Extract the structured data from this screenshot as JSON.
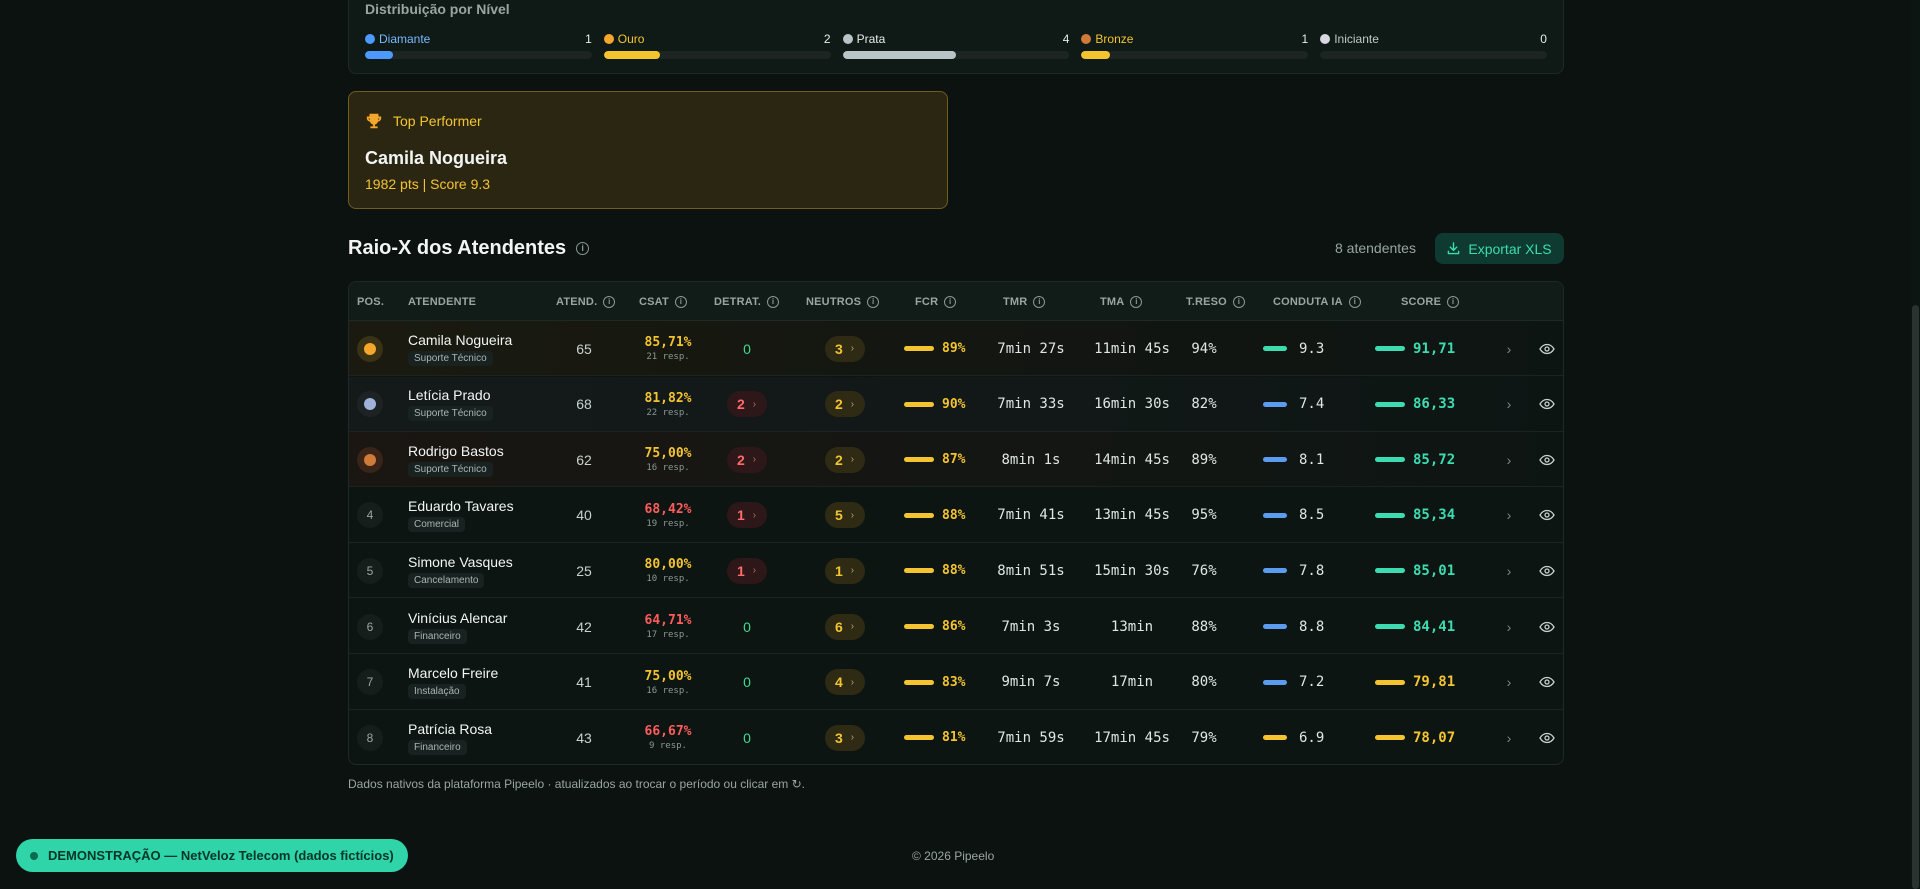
{
  "distribution": {
    "title": "Distribuição por Nível",
    "levels": [
      {
        "name": "Diamante",
        "count": "1",
        "fraction": 0.125,
        "color": "#4c9aff",
        "label_color": "#7ab8ff"
      },
      {
        "name": "Ouro",
        "count": "2",
        "fraction": 0.25,
        "color": "#f4c430",
        "label_color": "#f4c430"
      },
      {
        "name": "Prata",
        "count": "4",
        "fraction": 0.5,
        "color": "#b8c4c8",
        "label_color": "#e6ece9"
      },
      {
        "name": "Bronze",
        "count": "1",
        "fraction": 0.125,
        "color": "#f4c430",
        "label_color": "#f4c430"
      },
      {
        "name": "Iniciante",
        "count": "0",
        "fraction": 0,
        "color": "#888888",
        "label_color": "#c0c8c5"
      }
    ]
  },
  "top_performer": {
    "label": "Top Performer",
    "name": "Camila Nogueira",
    "summary": "1982 pts | Score 9.3"
  },
  "section": {
    "title": "Raio-X dos Atendentes",
    "count": "8 atendentes",
    "export_label": "Exportar XLS"
  },
  "columns": {
    "pos": "POS.",
    "agent": "ATENDENTE",
    "atend": "ATEND.",
    "csat": "CSAT",
    "detrat": "DETRAT.",
    "neutros": "NEUTROS",
    "fcr": "FCR",
    "tmr": "TMR",
    "tma": "TMA",
    "treso": "T.RESO",
    "conduta": "CONDUTA IA",
    "score": "SCORE"
  },
  "rows": [
    {
      "pos": "",
      "medal": "gold",
      "name": "Camila Nogueira",
      "team": "Suporte Técnico",
      "atend": "65",
      "csat": "85,71%",
      "csat_color": "#f4c430",
      "resp": "21 resp.",
      "detrat": "0",
      "neutros": "3",
      "fcr": "89%",
      "tmr": "7min 27s",
      "tma": "11min 45s",
      "treso": "94%",
      "conduta": "9.3",
      "conduta_color": "#3ddcb0",
      "score": "91,71",
      "score_color": "#3ddcb0"
    },
    {
      "pos": "",
      "medal": "silver",
      "name": "Letícia Prado",
      "team": "Suporte Técnico",
      "atend": "68",
      "csat": "81,82%",
      "csat_color": "#f4c430",
      "resp": "22 resp.",
      "detrat": "2",
      "neutros": "2",
      "fcr": "90%",
      "tmr": "7min 33s",
      "tma": "16min 30s",
      "treso": "82%",
      "conduta": "7.4",
      "conduta_color": "#5b9cf0",
      "score": "86,33",
      "score_color": "#3ddcb0"
    },
    {
      "pos": "",
      "medal": "bronze",
      "name": "Rodrigo Bastos",
      "team": "Suporte Técnico",
      "atend": "62",
      "csat": "75,00%",
      "csat_color": "#f4c430",
      "resp": "16 resp.",
      "detrat": "2",
      "neutros": "2",
      "fcr": "87%",
      "tmr": "8min 1s",
      "tma": "14min 45s",
      "treso": "89%",
      "conduta": "8.1",
      "conduta_color": "#5b9cf0",
      "score": "85,72",
      "score_color": "#3ddcb0"
    },
    {
      "pos": "4",
      "medal": "",
      "name": "Eduardo Tavares",
      "team": "Comercial",
      "atend": "40",
      "csat": "68,42%",
      "csat_color": "#ff5c5c",
      "resp": "19 resp.",
      "detrat": "1",
      "neutros": "5",
      "fcr": "88%",
      "tmr": "7min 41s",
      "tma": "13min 45s",
      "treso": "95%",
      "conduta": "8.5",
      "conduta_color": "#5b9cf0",
      "score": "85,34",
      "score_color": "#3ddcb0"
    },
    {
      "pos": "5",
      "medal": "",
      "name": "Simone Vasques",
      "team": "Cancelamento",
      "atend": "25",
      "csat": "80,00%",
      "csat_color": "#f4c430",
      "resp": "10 resp.",
      "detrat": "1",
      "neutros": "1",
      "fcr": "88%",
      "tmr": "8min 51s",
      "tma": "15min 30s",
      "treso": "76%",
      "conduta": "7.8",
      "conduta_color": "#5b9cf0",
      "score": "85,01",
      "score_color": "#3ddcb0"
    },
    {
      "pos": "6",
      "medal": "",
      "name": "Vinícius Alencar",
      "team": "Financeiro",
      "atend": "42",
      "csat": "64,71%",
      "csat_color": "#ff5c5c",
      "resp": "17 resp.",
      "detrat": "0",
      "neutros": "6",
      "fcr": "86%",
      "tmr": "7min 3s",
      "tma": "13min",
      "treso": "88%",
      "conduta": "8.8",
      "conduta_color": "#5b9cf0",
      "score": "84,41",
      "score_color": "#3ddcb0"
    },
    {
      "pos": "7",
      "medal": "",
      "name": "Marcelo Freire",
      "team": "Instalação",
      "atend": "41",
      "csat": "75,00%",
      "csat_color": "#f4c430",
      "resp": "16 resp.",
      "detrat": "0",
      "neutros": "4",
      "fcr": "83%",
      "tmr": "9min 7s",
      "tma": "17min",
      "treso": "80%",
      "conduta": "7.2",
      "conduta_color": "#5b9cf0",
      "score": "79,81",
      "score_color": "#f4c430"
    },
    {
      "pos": "8",
      "medal": "",
      "name": "Patrícia Rosa",
      "team": "Financeiro",
      "atend": "43",
      "csat": "66,67%",
      "csat_color": "#ff5c5c",
      "resp": "9 resp.",
      "detrat": "0",
      "neutros": "3",
      "fcr": "81%",
      "tmr": "7min 59s",
      "tma": "17min 45s",
      "treso": "79%",
      "conduta": "6.9",
      "conduta_color": "#f4c430",
      "score": "78,07",
      "score_color": "#f4c430"
    }
  ],
  "footnote": "Dados nativos da plataforma Pipeelo · atualizados ao trocar o período ou clicar em ↻.",
  "demo_banner": "DEMONSTRAÇÃO — NetVeloz Telecom (dados fictícios)",
  "copyright": "© 2026 Pipeelo",
  "colors": {
    "accent": "#3ddcb0",
    "gold": "#f4c430",
    "red": "#ff5c5c",
    "blue": "#5b9cf0",
    "background": "#0b1210"
  }
}
